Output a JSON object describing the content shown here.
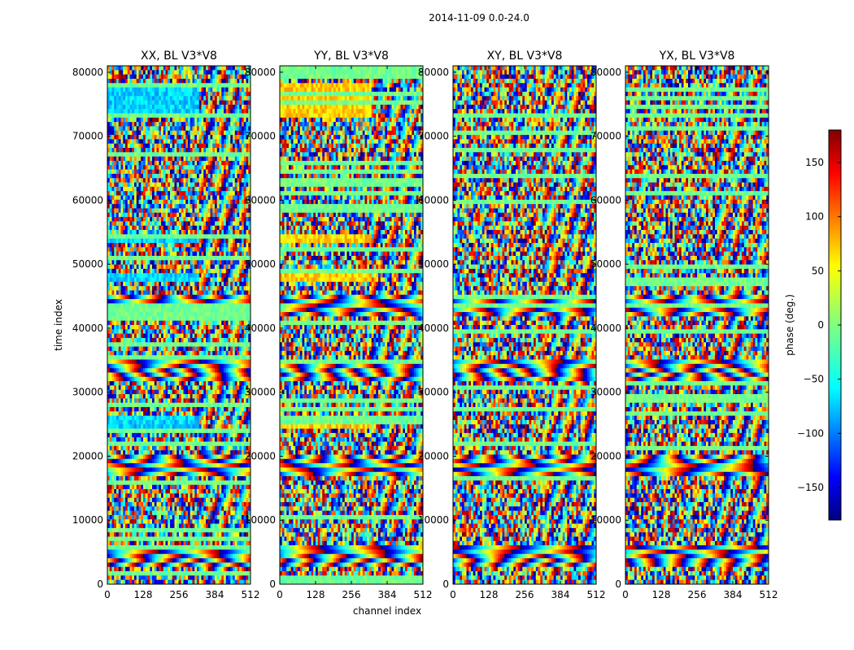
{
  "suptitle": "2014-11-09 0.0-24.0",
  "chart_data": {
    "type": "heatmap",
    "panels": [
      {
        "title": "XX, BL V3*V8"
      },
      {
        "title": "YY, BL V3*V8"
      },
      {
        "title": "XY, BL V3*V8"
      },
      {
        "title": "YX, BL V3*V8"
      }
    ],
    "xlabel": "channel index",
    "ylabel": "time index",
    "xlim": [
      0,
      512
    ],
    "ylim": [
      0,
      81000
    ],
    "x_ticks": [
      0,
      128,
      256,
      384,
      512
    ],
    "y_ticks": [
      0,
      10000,
      20000,
      30000,
      40000,
      50000,
      60000,
      70000,
      80000
    ],
    "colorbar": {
      "label": "phase (deg.)",
      "range": [
        -180,
        180
      ],
      "ticks": [
        150,
        100,
        50,
        0,
        -50,
        -100,
        -150
      ],
      "colormap": "jet"
    }
  },
  "colors": {
    "jet": [
      "#00007f",
      "#0000ff",
      "#007fff",
      "#00ffff",
      "#7fff7f",
      "#ffff00",
      "#ff7f00",
      "#ff0000",
      "#7f0000"
    ]
  }
}
